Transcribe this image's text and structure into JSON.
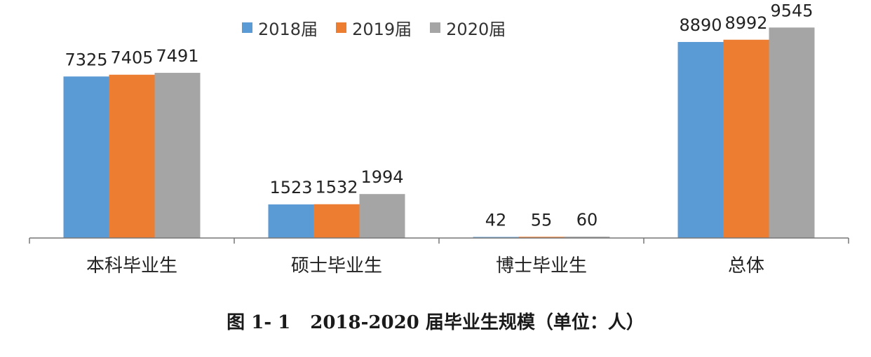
{
  "chart_data": {
    "type": "bar",
    "categories": [
      "本科毕业生",
      "硕士毕业生",
      "博士毕业生",
      "总体"
    ],
    "series": [
      {
        "name": "2018届",
        "color": "#5b9bd5",
        "values": [
          7325,
          1523,
          42,
          8890
        ]
      },
      {
        "name": "2019届",
        "color": "#ed7d31",
        "values": [
          7405,
          1532,
          55,
          8992
        ]
      },
      {
        "name": "2020届",
        "color": "#a5a5a5",
        "values": [
          7491,
          1994,
          60,
          9545
        ]
      }
    ],
    "ylim": [
      0,
      10000
    ],
    "legend_position": "top",
    "grid": false
  },
  "caption": {
    "label": "图 1- 1",
    "text": "2018-2020 届毕业生规模（单位：人）"
  }
}
